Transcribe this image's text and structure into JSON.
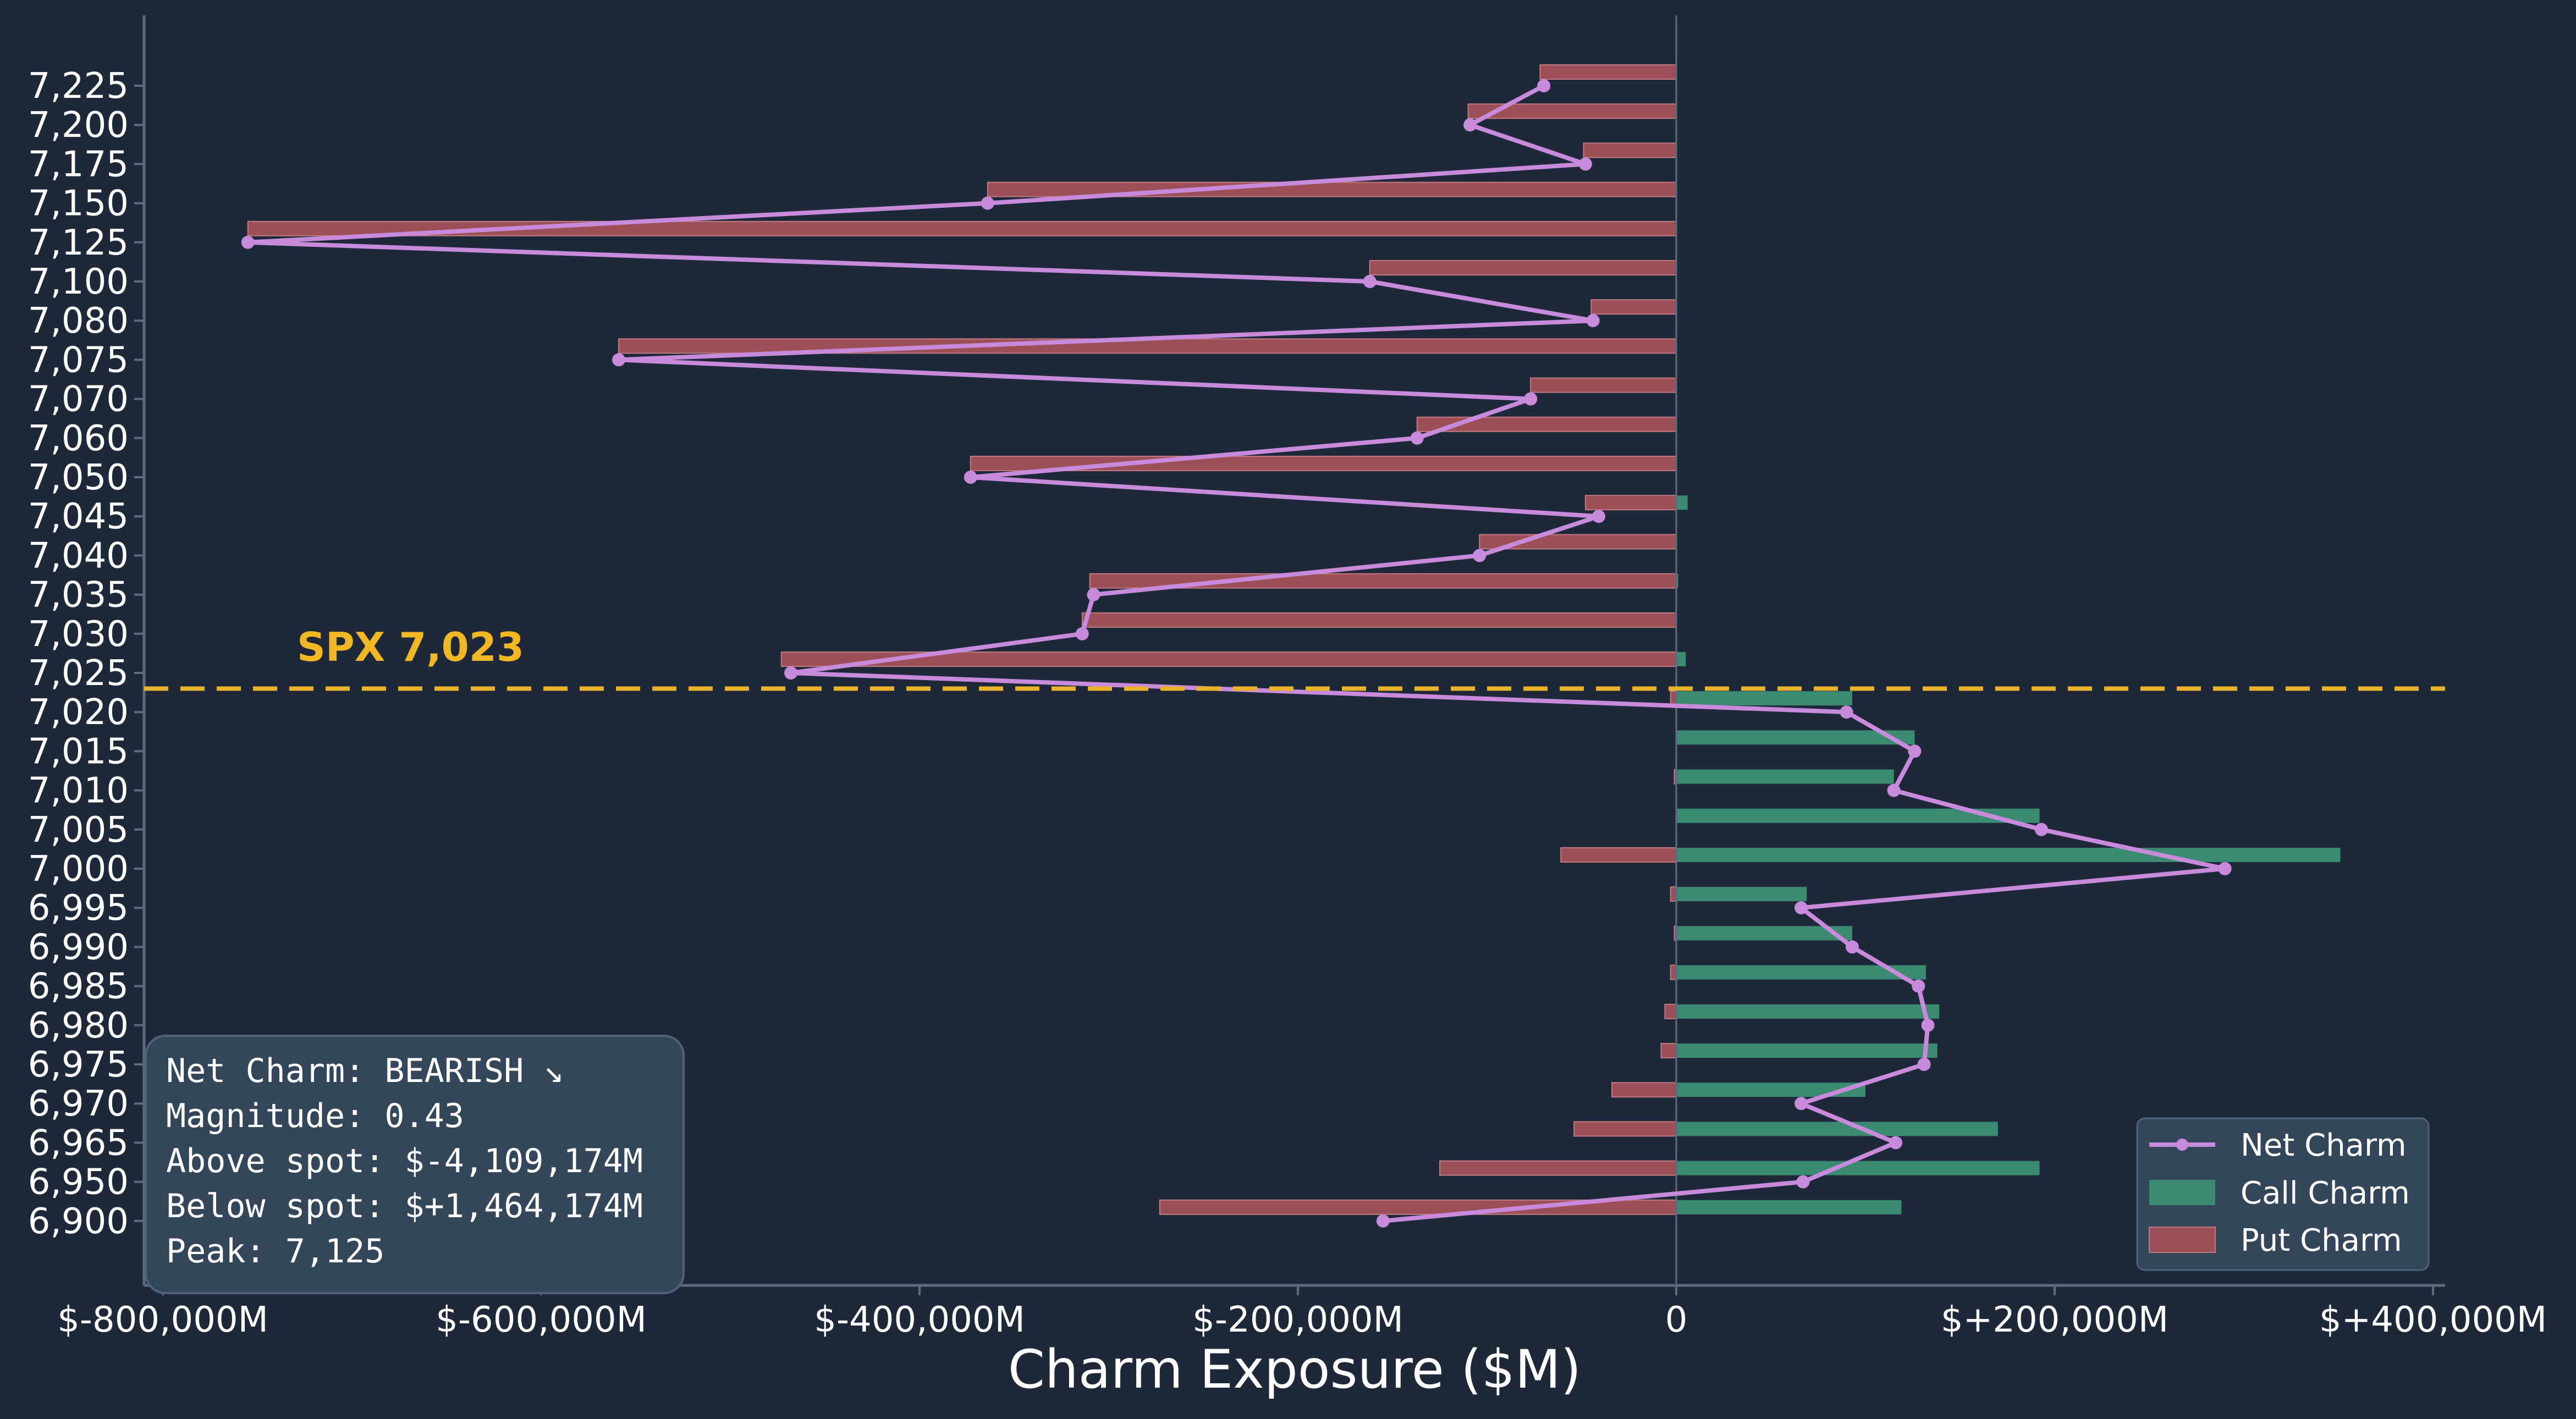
{
  "colors": {
    "background": "#1e2839",
    "axis": "#5b6b80",
    "call": "#3d8a73",
    "put": "#9c4f57",
    "net": "#c88bdc",
    "spot": "#e8b32a",
    "box_fill": "#34465a",
    "box_edge": "#4e627a"
  },
  "chart_data": {
    "type": "bar",
    "orientation": "horizontal",
    "xlabel": "Charm Exposure ($M)",
    "xlim": [
      -800000,
      400000
    ],
    "xticks": [
      {
        "value": -800000,
        "label": "$-800,000M"
      },
      {
        "value": -600000,
        "label": "$-600,000M"
      },
      {
        "value": -400000,
        "label": "$-400,000M"
      },
      {
        "value": -200000,
        "label": "$-200,000M"
      },
      {
        "value": 0,
        "label": "0"
      },
      {
        "value": 200000,
        "label": "$+200,000M"
      },
      {
        "value": 400000,
        "label": "$+400,000M"
      }
    ],
    "categories": [
      "7,225",
      "7,200",
      "7,175",
      "7,150",
      "7,125",
      "7,100",
      "7,080",
      "7,075",
      "7,070",
      "7,060",
      "7,050",
      "7,045",
      "7,040",
      "7,035",
      "7,030",
      "7,025",
      "7,020",
      "7,015",
      "7,010",
      "7,005",
      "7,000",
      "6,995",
      "6,990",
      "6,985",
      "6,980",
      "6,975",
      "6,970",
      "6,965",
      "6,950",
      "6,900"
    ],
    "series": [
      {
        "name": "Call Charm",
        "values": [
          0,
          0,
          0,
          0,
          0,
          0,
          0,
          0,
          0,
          0,
          0,
          6000,
          0,
          1000,
          0,
          5000,
          93000,
          126000,
          115000,
          192000,
          351000,
          69000,
          93000,
          132000,
          139000,
          138000,
          100000,
          170000,
          192000,
          119000
        ]
      },
      {
        "name": "Put Charm",
        "values": [
          -72000,
          -110000,
          -49000,
          -364000,
          -755000,
          -162000,
          -45000,
          -559000,
          -77000,
          -137000,
          -373000,
          -48000,
          -104000,
          -310000,
          -314000,
          -473000,
          -3000,
          0,
          -1000,
          0,
          -61000,
          -3000,
          -1000,
          -3000,
          -6000,
          -8000,
          -34000,
          -54000,
          -125000,
          -273000
        ]
      },
      {
        "name": "Net Charm",
        "values": [
          -70000,
          -109000,
          -48000,
          -364000,
          -755000,
          -162000,
          -44000,
          -559000,
          -77000,
          -137000,
          -373000,
          -41000,
          -104000,
          -308000,
          -314000,
          -468000,
          90000,
          126000,
          115000,
          193000,
          290000,
          66000,
          93000,
          128000,
          133000,
          131000,
          66000,
          116000,
          67000,
          -155000
        ]
      }
    ],
    "spot": {
      "value": 7023,
      "label": "SPX 7,023"
    },
    "legend": {
      "position": "lower-right",
      "entries": [
        "Net Charm",
        "Call Charm",
        "Put Charm"
      ]
    },
    "grid": false
  },
  "info_box": {
    "lines": [
      "Net Charm: BEARISH ↘",
      "Magnitude: 0.43",
      "Above spot: $-4,109,174M",
      "Below spot: $+1,464,174M",
      "Peak: 7,125"
    ]
  }
}
